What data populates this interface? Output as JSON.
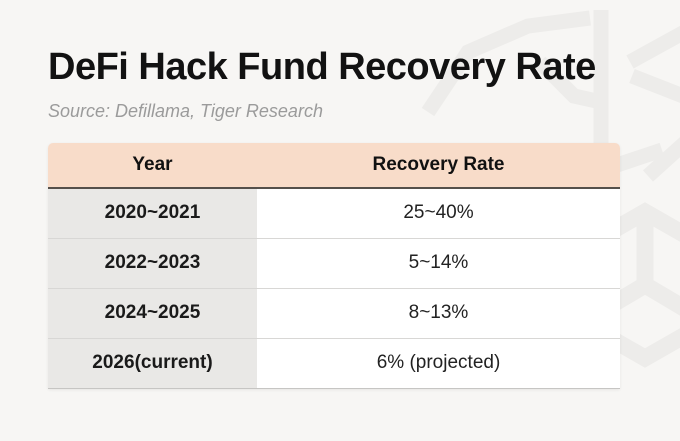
{
  "page": {
    "title": "DeFi Hack Fund Recovery Rate",
    "source": "Source: Defillama, Tiger Research",
    "watermark_icon": "tiger-logo-watermark"
  },
  "colors": {
    "background": "#f7f6f4",
    "header_bg": "#f8dcc9",
    "header_underline": "#55504b",
    "year_column_bg": "#e9e8e6",
    "row_bg": "#ffffff",
    "row_divider": "#d8d7d5",
    "title_text": "#121212",
    "source_text": "#9b9b9b",
    "watermark": "#edecea"
  },
  "chart_data": {
    "type": "table",
    "title": "DeFi Hack Fund Recovery Rate",
    "source": "Source: Defillama, Tiger Research",
    "columns": [
      "Year",
      "Recovery Rate"
    ],
    "rows": [
      [
        "2020~2021",
        "25~40%"
      ],
      [
        "2022~2023",
        "5~14%"
      ],
      [
        "2024~2025",
        "8~13%"
      ],
      [
        "2026(current)",
        "6% (projected)"
      ]
    ]
  }
}
